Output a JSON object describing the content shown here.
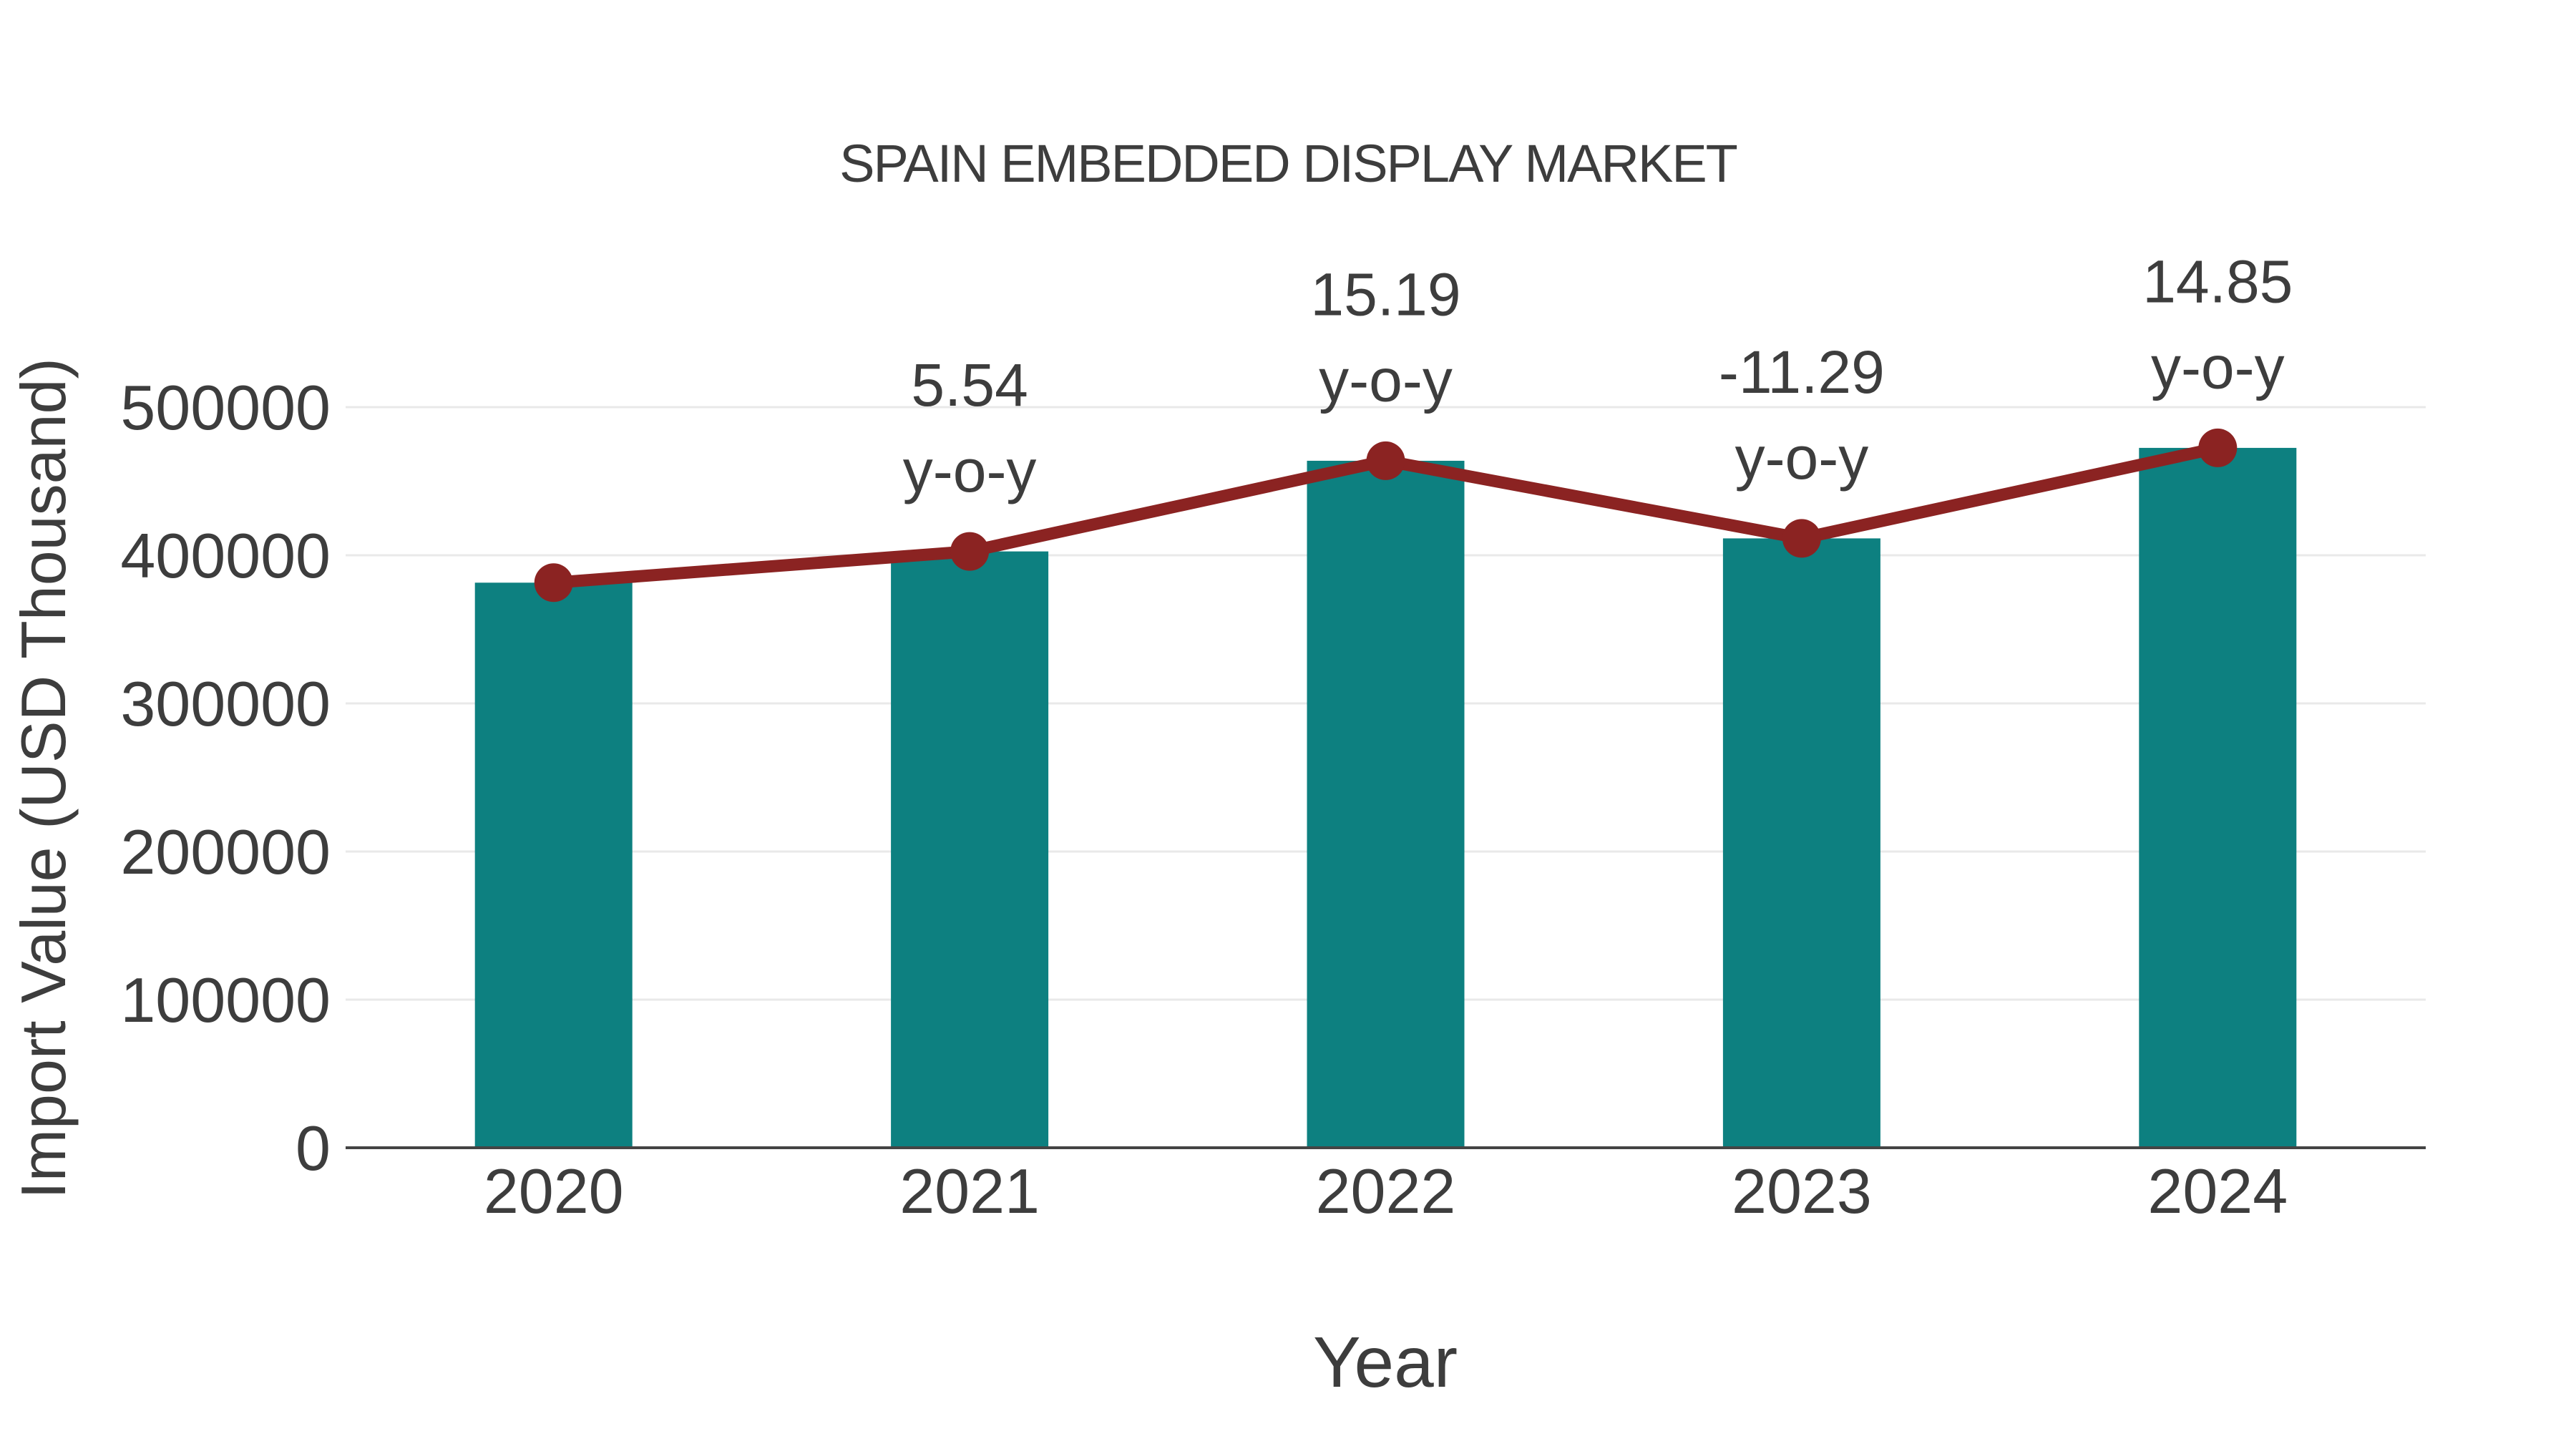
{
  "title": "SPAIN EMBEDDED DISPLAY MARKET",
  "colors": {
    "bar": "#0d8080",
    "line": "#8b2322",
    "marker": "#8b2322",
    "text": "#3d3d3d",
    "gridline": "#e9e9e9",
    "axis_line": "#444444",
    "background": "#ffffff"
  },
  "chart_data": {
    "type": "bar",
    "title": "SPAIN EMBEDDED DISPLAY MARKET",
    "xlabel": "Year",
    "ylabel": "Import Value (USD Thousand)",
    "categories": [
      "2020",
      "2021",
      "2022",
      "2023",
      "2024"
    ],
    "series": [
      {
        "name": "import-value-bars",
        "type": "bar",
        "color": "#0d8080",
        "values": [
          381500,
          402600,
          463800,
          411400,
          472500
        ]
      },
      {
        "name": "import-value-trend-line",
        "type": "line",
        "color": "#8b2322",
        "values": [
          381500,
          402600,
          463800,
          411400,
          472500
        ]
      }
    ],
    "yoy_percent": [
      null,
      5.54,
      15.19,
      -11.29,
      14.85
    ],
    "annotations": [
      {
        "category": "2021",
        "line1": "5.54",
        "line2": "y-o-y"
      },
      {
        "category": "2022",
        "line1": "15.19",
        "line2": "y-o-y"
      },
      {
        "category": "2023",
        "line1": "-11.29",
        "line2": "y-o-y"
      },
      {
        "category": "2024",
        "line1": "14.85",
        "line2": "y-o-y"
      }
    ],
    "yticks": [
      0,
      100000,
      200000,
      300000,
      400000,
      500000
    ],
    "ylim": [
      0,
      520000
    ],
    "grid": true,
    "legend_position": "none"
  }
}
